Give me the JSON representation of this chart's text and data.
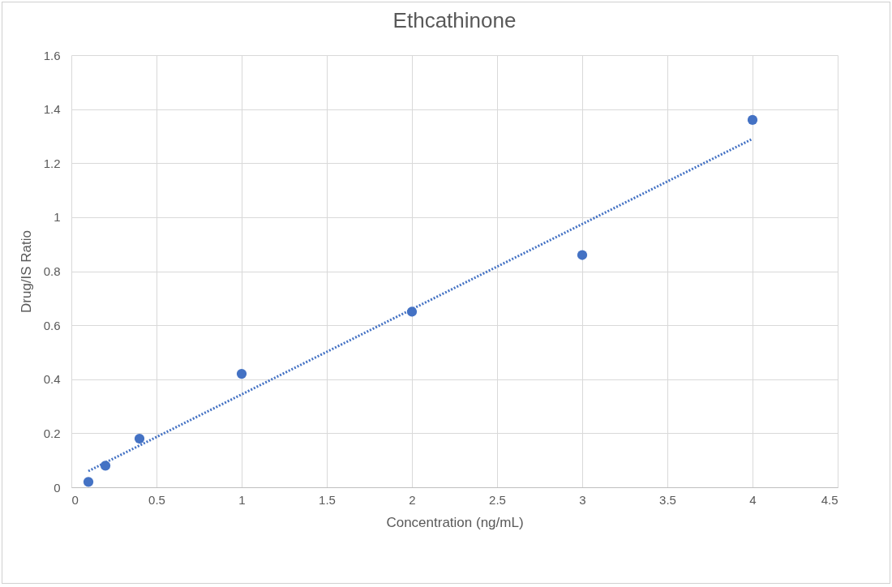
{
  "chart_data": {
    "type": "scatter",
    "title": "Ethcathinone",
    "xlabel": "Concentration (ng/mL)",
    "ylabel": "Drug/IS Ratio",
    "xlim": [
      0,
      4.5
    ],
    "ylim": [
      0,
      1.6
    ],
    "xticks": [
      0,
      0.5,
      1,
      1.5,
      2,
      2.5,
      3,
      3.5,
      4,
      4.5
    ],
    "yticks": [
      0,
      0.2,
      0.4,
      0.6,
      0.8,
      1,
      1.2,
      1.4,
      1.6
    ],
    "grid": true,
    "series": [
      {
        "marker": "circle",
        "color": "#4472c4",
        "x": [
          0.1,
          0.2,
          0.4,
          1,
          2,
          3,
          4
        ],
        "values": [
          0.02,
          0.08,
          0.18,
          0.42,
          0.65,
          0.86,
          1.36
        ]
      },
      {
        "type": "line",
        "color": "#4472c4",
        "line_style": "dotted",
        "x": [
          0.1,
          4
        ],
        "values": [
          0.06,
          1.29
        ]
      }
    ]
  }
}
